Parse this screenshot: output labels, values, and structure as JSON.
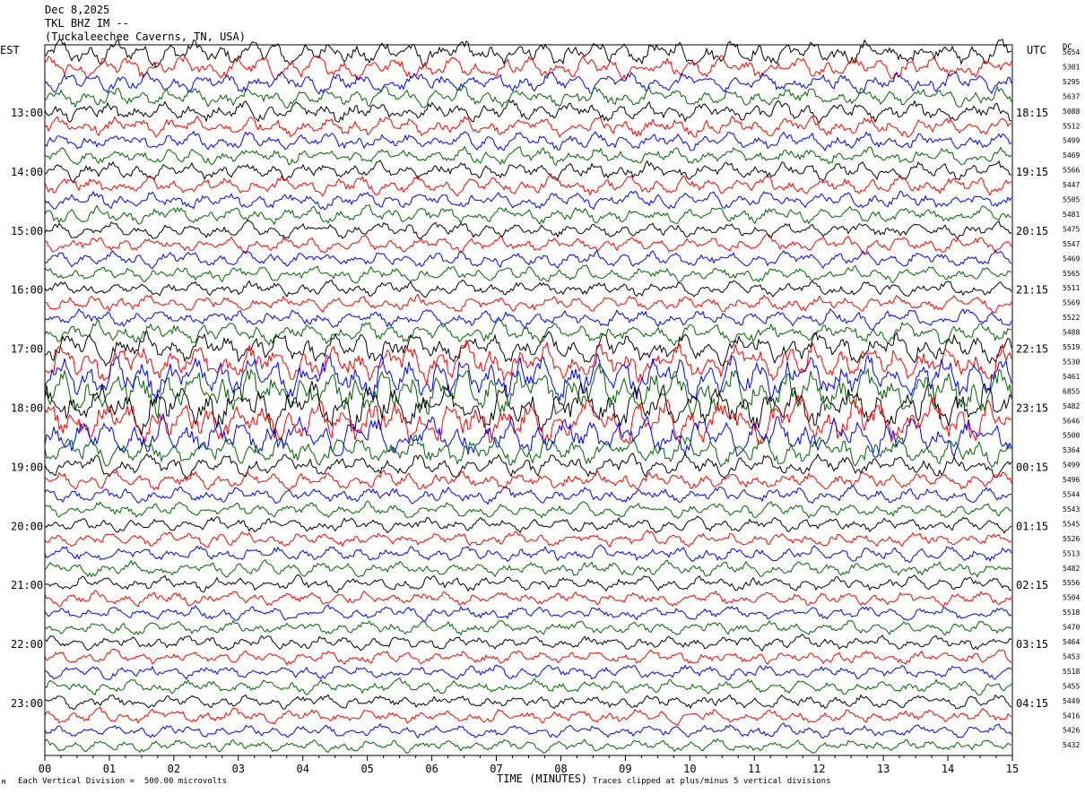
{
  "header": {
    "date": "Dec 8,2025",
    "station": "TKL BHZ IM --",
    "location": "(Tuckaleechee Caverns, TN, USA)"
  },
  "axis": {
    "left_tz": "EST",
    "right_tz": "UTC",
    "dc_label": "DC",
    "xlabel": "TIME (MINUTES)"
  },
  "footer": {
    "scale_note": "Each Vertical Division =  500.00 microvolts",
    "clip_note": "Traces clipped at plus/minus 5 vertical divisions",
    "logo_mark": "M"
  },
  "colors": {
    "trace_cycle": [
      "#000000",
      "#ff0000",
      "#0000ff",
      "#006400"
    ],
    "frame": "#000000",
    "background": "#ffffff"
  },
  "chart_data": {
    "type": "line",
    "description": "helicorder",
    "x_range": [
      0,
      15
    ],
    "x_ticks": [
      "00",
      "01",
      "02",
      "03",
      "04",
      "05",
      "06",
      "07",
      "08",
      "09",
      "10",
      "11",
      "12",
      "13",
      "14",
      "15"
    ],
    "left_hour_labels": [
      "13:00",
      "14:00",
      "15:00",
      "16:00",
      "17:00",
      "18:00",
      "19:00",
      "20:00",
      "21:00",
      "22:00",
      "23:00"
    ],
    "right_hour_labels": [
      "18:15",
      "19:15",
      "20:15",
      "21:15",
      "22:15",
      "23:15",
      "00:15",
      "01:15",
      "02:15",
      "03:15",
      "04:15"
    ],
    "dc_offsets": [
      "5654",
      "5301",
      "5295",
      "5637",
      "5088",
      "5512",
      "5499",
      "5469",
      "5566",
      "5447",
      "5505",
      "5481",
      "5475",
      "5547",
      "5469",
      "5565",
      "5511",
      "5569",
      "5522",
      "5488",
      "5519",
      "5530",
      "5461",
      "6855",
      "5482",
      "5646",
      "5500",
      "5364",
      "5499",
      "5496",
      "5544",
      "5543",
      "5545",
      "5526",
      "5513",
      "5482",
      "5556",
      "5504",
      "5518",
      "5470",
      "5464",
      "5453",
      "5518",
      "5455",
      "5449",
      "5416",
      "5426",
      "5432"
    ],
    "trace_amplitude_scale": [
      1.3,
      1.1,
      1.0,
      1.0,
      1.0,
      1.0,
      0.9,
      0.9,
      0.9,
      0.9,
      0.85,
      0.85,
      0.8,
      0.8,
      0.8,
      0.75,
      0.75,
      0.8,
      0.9,
      1.1,
      1.5,
      1.9,
      2.2,
      2.4,
      2.4,
      2.2,
      1.9,
      1.5,
      1.1,
      0.9,
      0.8,
      0.75,
      0.75,
      0.75,
      0.75,
      0.75,
      0.75,
      0.75,
      0.7,
      0.7,
      0.7,
      0.7,
      0.7,
      0.7,
      0.7,
      0.7,
      0.65,
      0.65
    ]
  }
}
